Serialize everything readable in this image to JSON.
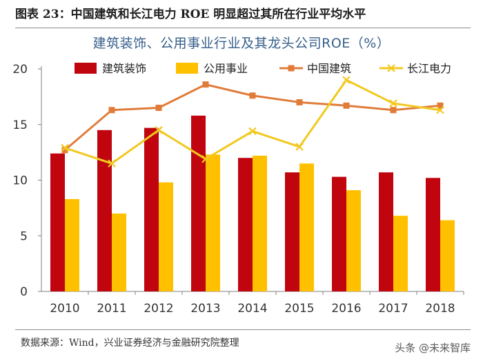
{
  "header": {
    "figure_label": "图表 23：中国建筑和长江电力 ROE 明显超过其所在行业平均水平"
  },
  "footer": {
    "source": "数据来源：Wind，兴业证券经济与金融研究院整理",
    "watermark": "头条 @未来智库"
  },
  "colors": {
    "construction": "#c0050f",
    "utilities": "#ffc000",
    "cscec": "#e07b39",
    "cypc": "#f2c81e"
  },
  "chart_data": {
    "type": "bar",
    "title": "建筑装饰、公用事业行业及其龙头公司ROE（%）",
    "xlabel": "",
    "ylabel": "",
    "ylim": [
      0,
      20
    ],
    "yticks": [
      0,
      5,
      10,
      15,
      20
    ],
    "categories": [
      "2010",
      "2011",
      "2012",
      "2013",
      "2014",
      "2015",
      "2016",
      "2017",
      "2018"
    ],
    "series": [
      {
        "name": "建筑装饰",
        "type": "bar",
        "color": "#c0050f",
        "values": [
          12.4,
          14.5,
          14.7,
          15.8,
          12.0,
          10.7,
          10.3,
          10.7,
          10.2
        ]
      },
      {
        "name": "公用事业",
        "type": "bar",
        "color": "#ffc000",
        "values": [
          8.3,
          7.0,
          9.8,
          12.3,
          12.2,
          11.5,
          9.1,
          6.8,
          6.4
        ]
      },
      {
        "name": "中国建筑",
        "type": "line",
        "marker": "square",
        "color": "#e07b39",
        "values": [
          12.7,
          16.3,
          16.5,
          18.6,
          17.6,
          17.0,
          16.7,
          16.3,
          16.7
        ]
      },
      {
        "name": "长江电力",
        "type": "line",
        "marker": "x",
        "color": "#f2c81e",
        "values": [
          12.9,
          11.5,
          14.5,
          11.9,
          14.4,
          13.0,
          19.0,
          16.9,
          16.3
        ]
      }
    ],
    "legend": "top, horizontal"
  }
}
